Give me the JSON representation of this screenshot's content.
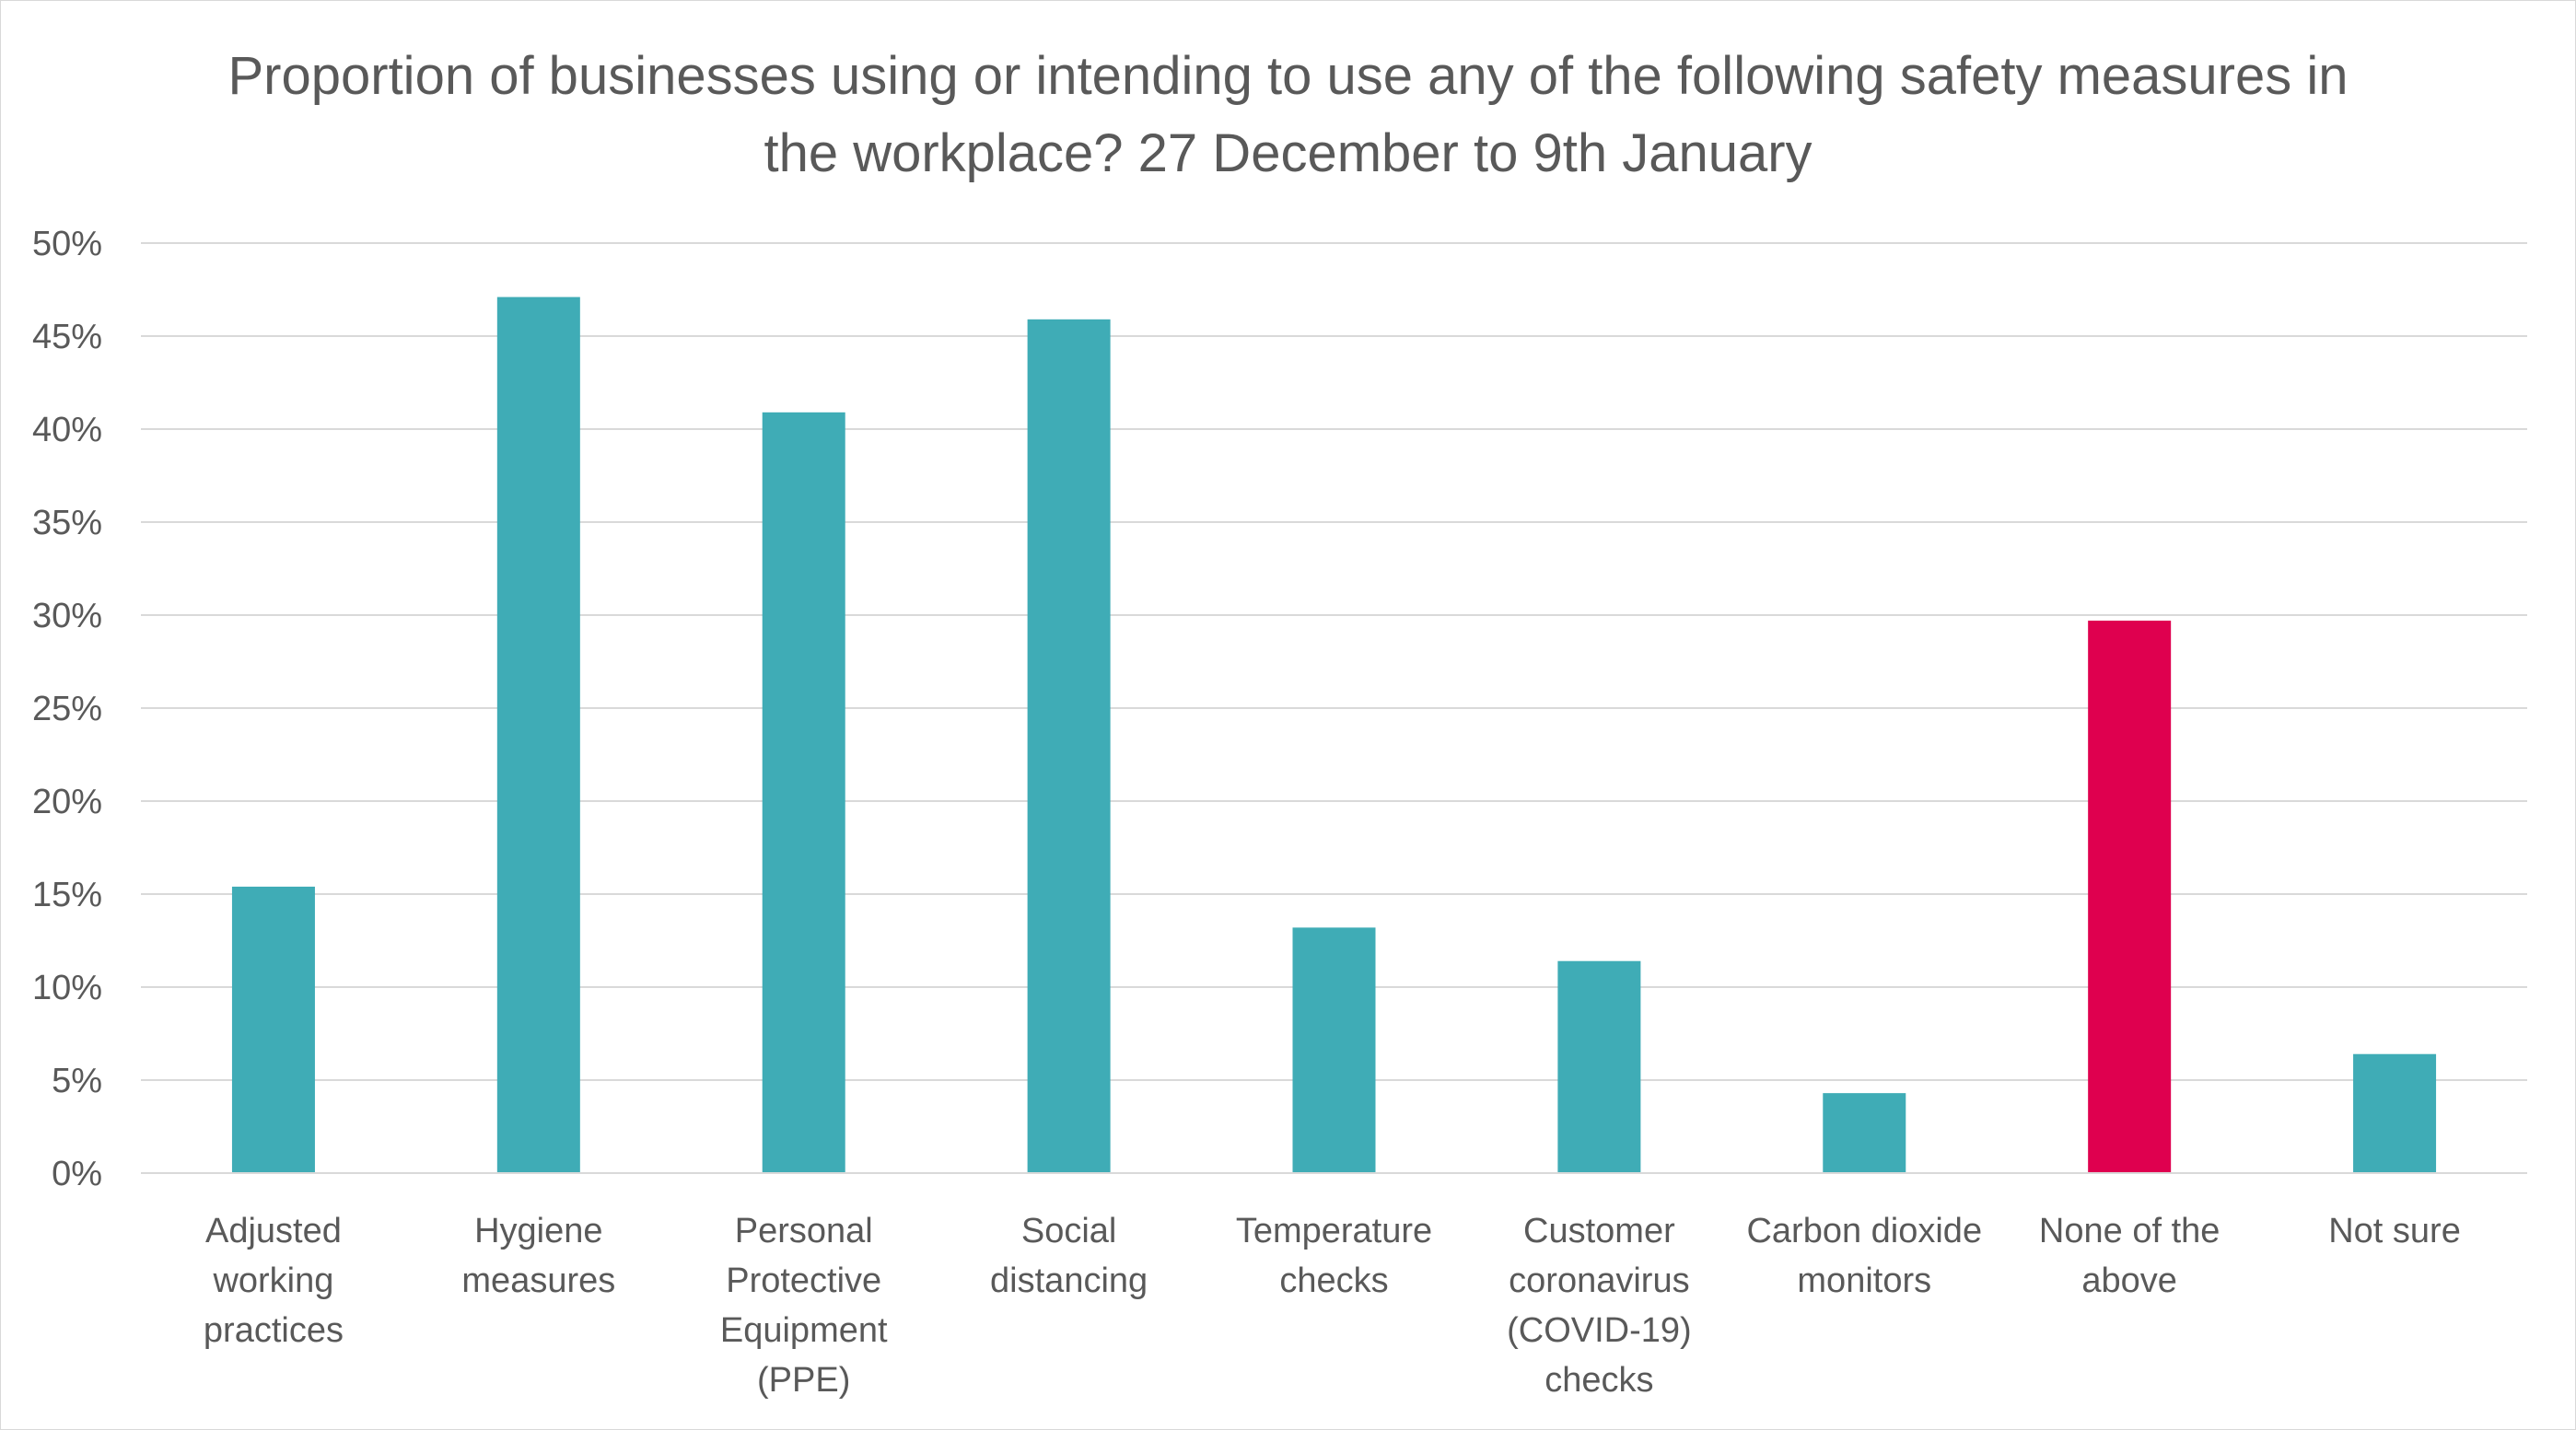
{
  "chart_data": {
    "type": "bar",
    "title": "Proportion of businesses using or intending to use any of the following safety measures in the workplace? 27 December to 9th January",
    "categories": [
      [
        "Adjusted",
        "working",
        "practices"
      ],
      [
        "Hygiene",
        "measures"
      ],
      [
        "Personal",
        "Protective",
        "Equipment",
        "(PPE)"
      ],
      [
        "Social",
        "distancing"
      ],
      [
        "Temperature",
        "checks"
      ],
      [
        "Customer",
        "coronavirus",
        "(COVID-19)",
        "checks"
      ],
      [
        "Carbon dioxide",
        "monitors"
      ],
      [
        "None of the",
        "above"
      ],
      [
        "Not sure"
      ]
    ],
    "values": [
      15.4,
      47.1,
      40.9,
      45.9,
      13.2,
      11.4,
      4.3,
      29.7,
      6.4
    ],
    "bar_colors": [
      "#3facb6",
      "#3facb6",
      "#3facb6",
      "#3facb6",
      "#3facb6",
      "#3facb6",
      "#3facb6",
      "#df004f",
      "#3facb6"
    ],
    "ylim": [
      0,
      50
    ],
    "yticks": [
      0,
      5,
      10,
      15,
      20,
      25,
      30,
      35,
      40,
      45,
      50
    ],
    "ytick_labels": [
      "0%",
      "5%",
      "10%",
      "15%",
      "20%",
      "25%",
      "30%",
      "35%",
      "40%",
      "45%",
      "50%"
    ],
    "xlabel": "",
    "ylabel": "",
    "grid": true,
    "legend": "none",
    "colors": {
      "primary": "#3facb6",
      "highlight": "#df004f",
      "gridline": "#d9d9d9",
      "text": "#595959"
    }
  }
}
